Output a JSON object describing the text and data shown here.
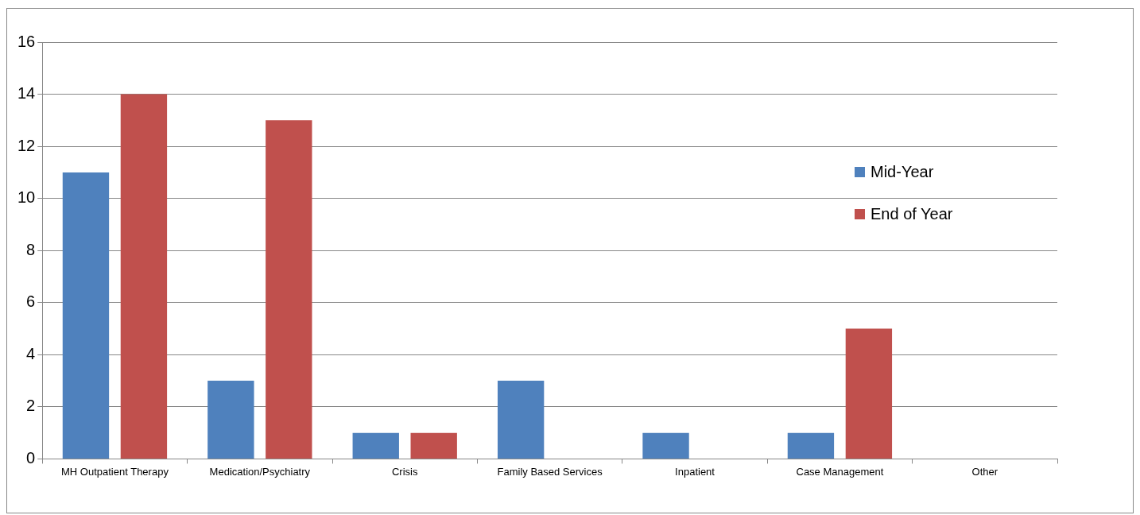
{
  "chart_data": {
    "type": "bar",
    "categories": [
      "MH Outpatient Therapy",
      "Medication/Psychiatry",
      "Crisis",
      "Family Based Services",
      "Inpatient",
      "Case Management",
      "Other"
    ],
    "series": [
      {
        "name": "Mid-Year",
        "color": "#4f81bd",
        "values": [
          11,
          3,
          1,
          3,
          1,
          1,
          0
        ]
      },
      {
        "name": "End of Year",
        "color": "#c0504d",
        "values": [
          14,
          13,
          1,
          0,
          0,
          5,
          0
        ]
      }
    ],
    "ylim": [
      0,
      16
    ],
    "yticks": [
      0,
      2,
      4,
      6,
      8,
      10,
      12,
      14,
      16
    ],
    "grid": "y",
    "legend": "right"
  }
}
